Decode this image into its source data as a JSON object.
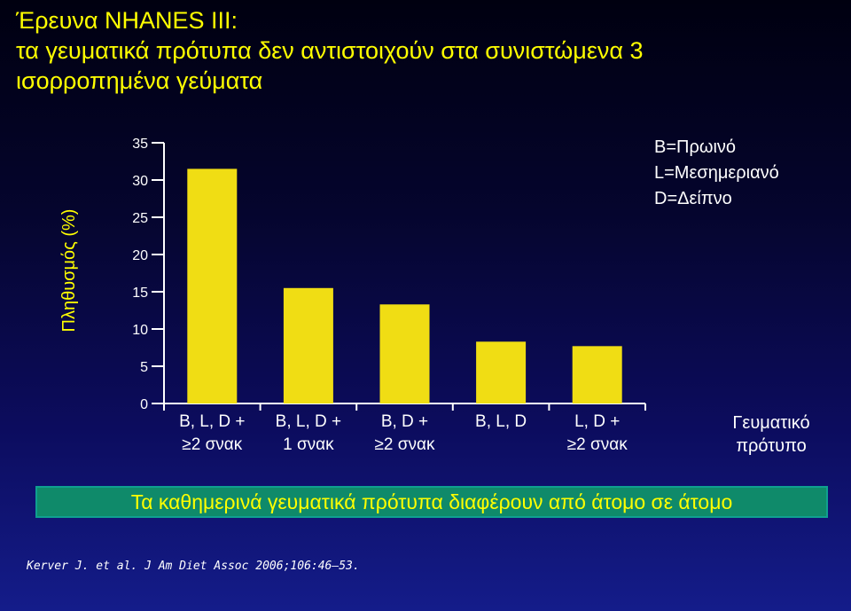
{
  "title": {
    "line1": "Έρευνα NHANES III:",
    "line2": "τα γευματικά πρότυπα δεν αντιστοιχούν στα συνιστώμενα 3",
    "line3": "ισορροπημένα γεύματα"
  },
  "legend": {
    "line1": "B=Πρωινό",
    "line2": "L=Μεσημεριανό",
    "line3": "D=Δείπνο"
  },
  "banner": "Τα καθημερινά γευματικά πρότυπα διαφέρουν από άτομο σε άτομο",
  "citation": "Kerver J. et al. J Am Diet Assoc 2006;106:46–53.",
  "colors": {
    "bar": "#f0dd14",
    "title": "#ffff00",
    "axis": "#ffffff",
    "banner_bg": "#0f8a6a"
  },
  "chart_data": {
    "type": "bar",
    "categories": [
      [
        "B, L, D +",
        "≥2 σνακ"
      ],
      [
        "B, L, D +",
        "1 σνακ"
      ],
      [
        "B, D +",
        "≥2 σνακ"
      ],
      [
        "B, L, D"
      ],
      [
        "L, D +",
        "≥2 σνακ"
      ]
    ],
    "values": [
      31.5,
      15.5,
      13.3,
      8.3,
      7.7
    ],
    "ylabel": "Πληθυσμός (%)",
    "xlabel": [
      "Γευματικό",
      "πρότυπο"
    ],
    "yticks": [
      0,
      5,
      10,
      15,
      20,
      25,
      30,
      35
    ],
    "ylim": [
      0,
      35
    ],
    "grid": false
  }
}
